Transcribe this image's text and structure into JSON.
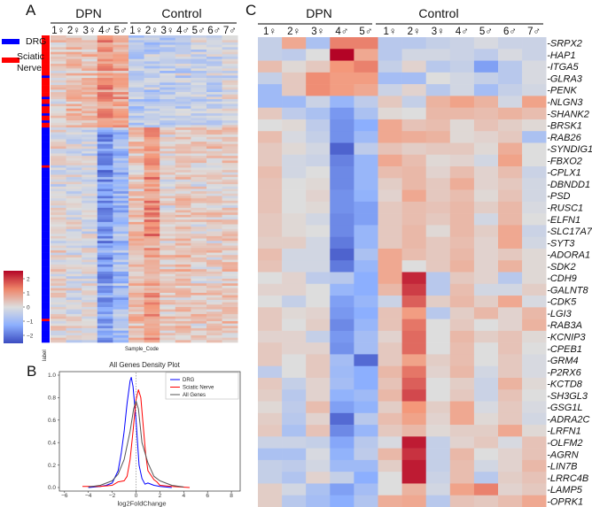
{
  "colors": {
    "low": "#3b4cc0",
    "mid": "#dddddd",
    "high": "#b40426",
    "drg": "#0000ff",
    "sciatic": "#ff0000",
    "all": "#555555"
  },
  "panel_a": {
    "letter": "A",
    "group_labels": [
      "DPN",
      "Control"
    ],
    "samples": [
      "1♀",
      "2♀",
      "3♀",
      "4♂",
      "5♂",
      "1♀",
      "2♀",
      "3♀",
      "4♂",
      "5♂",
      "6♂",
      "7♂"
    ],
    "legend": [
      {
        "label": "DRG",
        "color": "#0000ff"
      },
      {
        "label": "Sciatic",
        "label2": "Nerve",
        "color": "#ff0000"
      }
    ],
    "colorbar_ticks": [
      "2",
      "1",
      "0",
      "−1",
      "−2"
    ],
    "colorbar_values": [
      2,
      1,
      0,
      -1,
      -2
    ],
    "x_label": "Sample_Code",
    "row_label": "label",
    "segments": [
      {
        "fraction": 0.3,
        "tissue": "Sciatic Nerve",
        "column_means": [
          0.3,
          0.6,
          0.6,
          1.2,
          1.0,
          -0.6,
          -0.5,
          -0.6,
          -0.4,
          -0.3,
          -0.4,
          -0.1
        ]
      },
      {
        "fraction": 0.35,
        "tissue": "DRG",
        "column_means": [
          0,
          -0.1,
          -0.2,
          -1.6,
          -1.0,
          0.5,
          1.3,
          0.2,
          0.5,
          0.2,
          0.3,
          0.3
        ]
      },
      {
        "fraction": 0.35,
        "tissue": "DRG",
        "column_means": [
          0.1,
          -0.1,
          -0.1,
          -1.5,
          -0.9,
          0.6,
          1.0,
          0.3,
          0.5,
          0.3,
          0.3,
          0.4
        ]
      }
    ]
  },
  "chart_data": [
    {
      "type": "heatmap",
      "panel": "C",
      "title": "",
      "group_labels": [
        "DPN",
        "Control"
      ],
      "columns": [
        "1♀",
        "2♀",
        "3♀",
        "4♂",
        "5♂",
        "1♀",
        "2♀",
        "3♀",
        "4♂",
        "5♂",
        "6♂",
        "7♂"
      ],
      "column_groups": [
        "DPN",
        "DPN",
        "DPN",
        "DPN",
        "DPN",
        "Control",
        "Control",
        "Control",
        "Control",
        "Control",
        "Control",
        "Control"
      ],
      "rows": [
        "SRPX2",
        "HAP1",
        "ITGA5",
        "GLRA3",
        "PENK",
        "NLGN3",
        "SHANK2",
        "BRSK1",
        "RAB26",
        "SYNDIG1",
        "FBXO2",
        "CPLX1",
        "DBNDD1",
        "PSD",
        "RUSC1",
        "ELFN1",
        "SLC17A7",
        "SYT3",
        "ADORA1",
        "SDK2",
        "CDH9",
        "GALNT8",
        "CDK5",
        "LGI3",
        "RAB3A",
        "KCNIP3",
        "CPEB1",
        "GRM4",
        "P2RX6",
        "KCTD8",
        "SH3GL3",
        "GSG1L",
        "ADRA2C",
        "LRFN1",
        "OLFM2",
        "AGRN",
        "LIN7B",
        "LRRC4B",
        "LAMP5",
        "OPRK1"
      ],
      "values": [
        [
          -0.4,
          1.0,
          -0.8,
          1.5,
          1.5,
          -0.6,
          -0.6,
          -0.4,
          -0.3,
          -0.1,
          -0.3,
          -0.3
        ],
        [
          -0.4,
          -0.5,
          0,
          2.6,
          1.0,
          -0.6,
          -0.2,
          -0.2,
          -0.3,
          -0.5,
          -0.1,
          -0.3
        ],
        [
          0.6,
          0.1,
          0.4,
          1.3,
          1.5,
          -0.4,
          0.2,
          -0.6,
          -0.4,
          -1.5,
          -0.6,
          -0.1
        ],
        [
          -0.4,
          0.4,
          1.4,
          1.2,
          1.2,
          -0.9,
          -0.9,
          0,
          -0.2,
          -0.4,
          -0.6,
          -0.1
        ],
        [
          -1,
          0.4,
          1.4,
          1.2,
          1.0,
          -0.3,
          0.2,
          -0.6,
          -0.2,
          -0.9,
          -0.4,
          -0.2
        ],
        [
          -1,
          -1,
          -0.3,
          -1.1,
          -0.5,
          0.4,
          -0.4,
          0.8,
          1.1,
          0.8,
          -0.2,
          1.1
        ],
        [
          0.4,
          -0.5,
          -0.8,
          -1.6,
          -0.8,
          0.1,
          0,
          0.7,
          0.7,
          0.6,
          0.8,
          0.6
        ],
        [
          0,
          0.1,
          -0.5,
          -1.7,
          -1.3,
          1.0,
          0.5,
          0.6,
          0.1,
          0.5,
          0.3,
          0.1
        ],
        [
          0.6,
          -0.1,
          -0.4,
          -1.7,
          -1.0,
          1.0,
          0.9,
          0.8,
          0.1,
          0.2,
          0.4,
          -0.8
        ],
        [
          0.4,
          0.1,
          -0.2,
          -2.3,
          -0.5,
          0.5,
          0.3,
          0.4,
          0.4,
          0.1,
          0.9,
          0
        ],
        [
          0.4,
          -0.2,
          -0.3,
          -1.9,
          -1.1,
          1.0,
          0.6,
          0.1,
          0.2,
          -0.2,
          1.1,
          0
        ],
        [
          0.6,
          -0.2,
          0,
          -1.8,
          -1.1,
          0.6,
          0.7,
          0.2,
          0.6,
          0.2,
          0.6,
          -0.3
        ],
        [
          0.5,
          0,
          0.1,
          -1.8,
          -1.1,
          0.3,
          0.7,
          0.4,
          0.9,
          0.2,
          0.4,
          -0.2
        ],
        [
          0.5,
          0,
          0.2,
          -1.7,
          -1.2,
          0.2,
          1.0,
          0.4,
          0.6,
          0.1,
          0.5,
          -0.2
        ],
        [
          0.5,
          0,
          0.1,
          -1.7,
          -1.5,
          0.4,
          0.6,
          0.5,
          0.7,
          0.3,
          0.7,
          -0.1
        ],
        [
          0.4,
          0.1,
          -0.2,
          -1.8,
          -1.5,
          0.4,
          0.6,
          0.4,
          0.7,
          -0.2,
          0.7,
          0
        ],
        [
          0.4,
          0.1,
          0,
          -1.8,
          -1.1,
          0.4,
          0.7,
          0.1,
          0.7,
          0.3,
          1.0,
          -0.3
        ],
        [
          0.3,
          0.3,
          -0.2,
          -2.0,
          -1.1,
          0.4,
          0.7,
          0.4,
          0.6,
          0.2,
          1.0,
          -0.2
        ],
        [
          0.6,
          -0.2,
          -0.2,
          -2.3,
          -0.8,
          1.0,
          0.6,
          0.4,
          0.7,
          0.2,
          0.4,
          0.1
        ],
        [
          0.5,
          -0.2,
          -0.2,
          -2.0,
          -1.1,
          1.0,
          0,
          0.4,
          0.8,
          0.2,
          0.8,
          0.1
        ],
        [
          0,
          0.2,
          -0.5,
          -0.6,
          -1.3,
          1.0,
          2.3,
          -0.6,
          0.4,
          0.2,
          -0.6,
          0.1
        ],
        [
          0.2,
          0.2,
          0,
          -1.1,
          -1.3,
          0.7,
          2.1,
          -0.6,
          0.6,
          -0.2,
          -0.2,
          0.3
        ],
        [
          0,
          -0.4,
          0,
          -1.5,
          -1.1,
          -0.3,
          1.8,
          0.3,
          0.7,
          0.3,
          1.0,
          -0.1
        ],
        [
          0.4,
          0.1,
          0.2,
          -1.6,
          -1.3,
          0.5,
          1.2,
          -0.6,
          0.3,
          0.7,
          0.2,
          0.7
        ],
        [
          0.4,
          0,
          0.3,
          -1.8,
          -1.1,
          0.5,
          1.6,
          0,
          0.4,
          0,
          0.2,
          0.8
        ],
        [
          0.2,
          0.2,
          -0.4,
          -1.6,
          -0.9,
          0.2,
          1.7,
          0,
          0.7,
          0.3,
          0.5,
          0.1
        ],
        [
          0.4,
          0.2,
          0.2,
          -1.7,
          -0.9,
          0.4,
          1.7,
          0,
          0.6,
          0,
          0.5,
          0
        ],
        [
          0.4,
          0,
          0.4,
          -0.9,
          -2.2,
          0.4,
          1.1,
          0.3,
          0.6,
          0,
          0.4,
          -0.1
        ],
        [
          -0.5,
          0,
          0.4,
          -1.0,
          -1.3,
          0.7,
          1.6,
          0.2,
          0.7,
          -0.2,
          0.4,
          -0.1
        ],
        [
          0.4,
          -0.4,
          0.2,
          -0.9,
          -1.3,
          0.5,
          1.8,
          0,
          0.3,
          -0.3,
          0.8,
          0.1
        ],
        [
          0.3,
          -0.6,
          0.2,
          -1.2,
          -1.0,
          0.7,
          2.0,
          0,
          0.4,
          -0.3,
          0.5,
          0
        ],
        [
          0.1,
          -0.5,
          0.6,
          -1.5,
          -1.2,
          0.3,
          1.3,
          0.3,
          1.0,
          -0.1,
          0.4,
          -0.1
        ],
        [
          0.3,
          -0.6,
          0.2,
          -2.2,
          -0.6,
          0.6,
          1.1,
          0.2,
          1.0,
          0.1,
          0.4,
          -0.2
        ],
        [
          0.4,
          -0.8,
          0.5,
          -1.8,
          -1.1,
          0.4,
          0.7,
          0.1,
          0.3,
          0.3,
          1.0,
          0.1
        ],
        [
          -0.3,
          -0.3,
          -0.4,
          -1.4,
          -0.6,
          -0.1,
          2.4,
          -0.4,
          0.2,
          0.4,
          -0.1,
          0.5
        ],
        [
          -0.8,
          -0.8,
          -0.1,
          -1.2,
          -0.5,
          0.7,
          2.2,
          -0.4,
          0.7,
          0,
          0.2,
          0.5
        ],
        [
          -0.4,
          -0.5,
          -0.2,
          -1.0,
          -1.0,
          0.3,
          2.4,
          -0.4,
          0.6,
          -0.2,
          0.2,
          0.7
        ],
        [
          -0.4,
          -0.7,
          0.2,
          -0.4,
          -1.3,
          0,
          2.4,
          -0.3,
          0.6,
          -0.6,
          0.3,
          0.5
        ],
        [
          0.3,
          -0.2,
          -0.8,
          -1.5,
          -0.9,
          0,
          0.8,
          -0.2,
          1.1,
          1.5,
          0.2,
          0.4
        ],
        [
          0.3,
          -0.6,
          -0.9,
          -1.3,
          -0.7,
          0.9,
          1.0,
          -0.6,
          0.5,
          0.4,
          0.6,
          1.0
        ]
      ],
      "value_range": [
        -2.5,
        2.5
      ]
    },
    {
      "type": "line",
      "panel": "B",
      "title": "All Genes Density Plot",
      "xlabel": "log2FoldChange",
      "ylabel": "",
      "xlim": [
        -6.5,
        8.5
      ],
      "ylim": [
        0,
        1.03
      ],
      "xticks": [
        -6,
        -4,
        -2,
        0,
        2,
        4,
        6,
        8
      ],
      "yticks": [
        0.0,
        0.2,
        0.4,
        0.6,
        0.8,
        1.0
      ],
      "legend_position": "top-right",
      "vline_x": 0,
      "series": [
        {
          "name": "DRG",
          "color": "#0000ff",
          "x": [
            -4,
            -3,
            -2.5,
            -2,
            -1.5,
            -1.25,
            -1,
            -0.75,
            -0.5,
            -0.4,
            -0.25,
            0,
            0.25,
            0.5,
            0.75,
            1,
            1.5,
            2,
            3
          ],
          "y": [
            0,
            0.01,
            0.02,
            0.04,
            0.15,
            0.3,
            0.5,
            0.75,
            0.95,
            0.98,
            0.9,
            0.6,
            0.2,
            0.08,
            0.03,
            0.04,
            0.02,
            0.01,
            0
          ]
        },
        {
          "name": "Sciatic Nerve",
          "color": "#ff0000",
          "x": [
            -4.5,
            -3,
            -2,
            -1.5,
            -1,
            -0.75,
            -0.5,
            -0.25,
            0,
            0.2,
            0.4,
            0.6,
            0.8,
            1,
            1.5,
            1.75,
            2,
            3,
            4.5
          ],
          "y": [
            0.01,
            0.01,
            0.02,
            0.05,
            0.06,
            0.1,
            0.25,
            0.5,
            0.78,
            0.87,
            0.8,
            0.55,
            0.3,
            0.15,
            0.07,
            0.05,
            0.02,
            0.01,
            0
          ]
        },
        {
          "name": "All Genes",
          "color": "#555555",
          "x": [
            -4,
            -3,
            -2,
            -1.5,
            -1,
            -0.5,
            -0.2,
            0,
            0.2,
            0.5,
            1,
            1.5,
            2,
            3,
            4
          ],
          "y": [
            0.005,
            0.02,
            0.06,
            0.12,
            0.25,
            0.5,
            0.7,
            0.77,
            0.7,
            0.4,
            0.22,
            0.1,
            0.06,
            0.02,
            0.005
          ]
        }
      ]
    }
  ],
  "panel_b": {
    "letter": "B"
  },
  "panel_c": {
    "letter": "C"
  }
}
